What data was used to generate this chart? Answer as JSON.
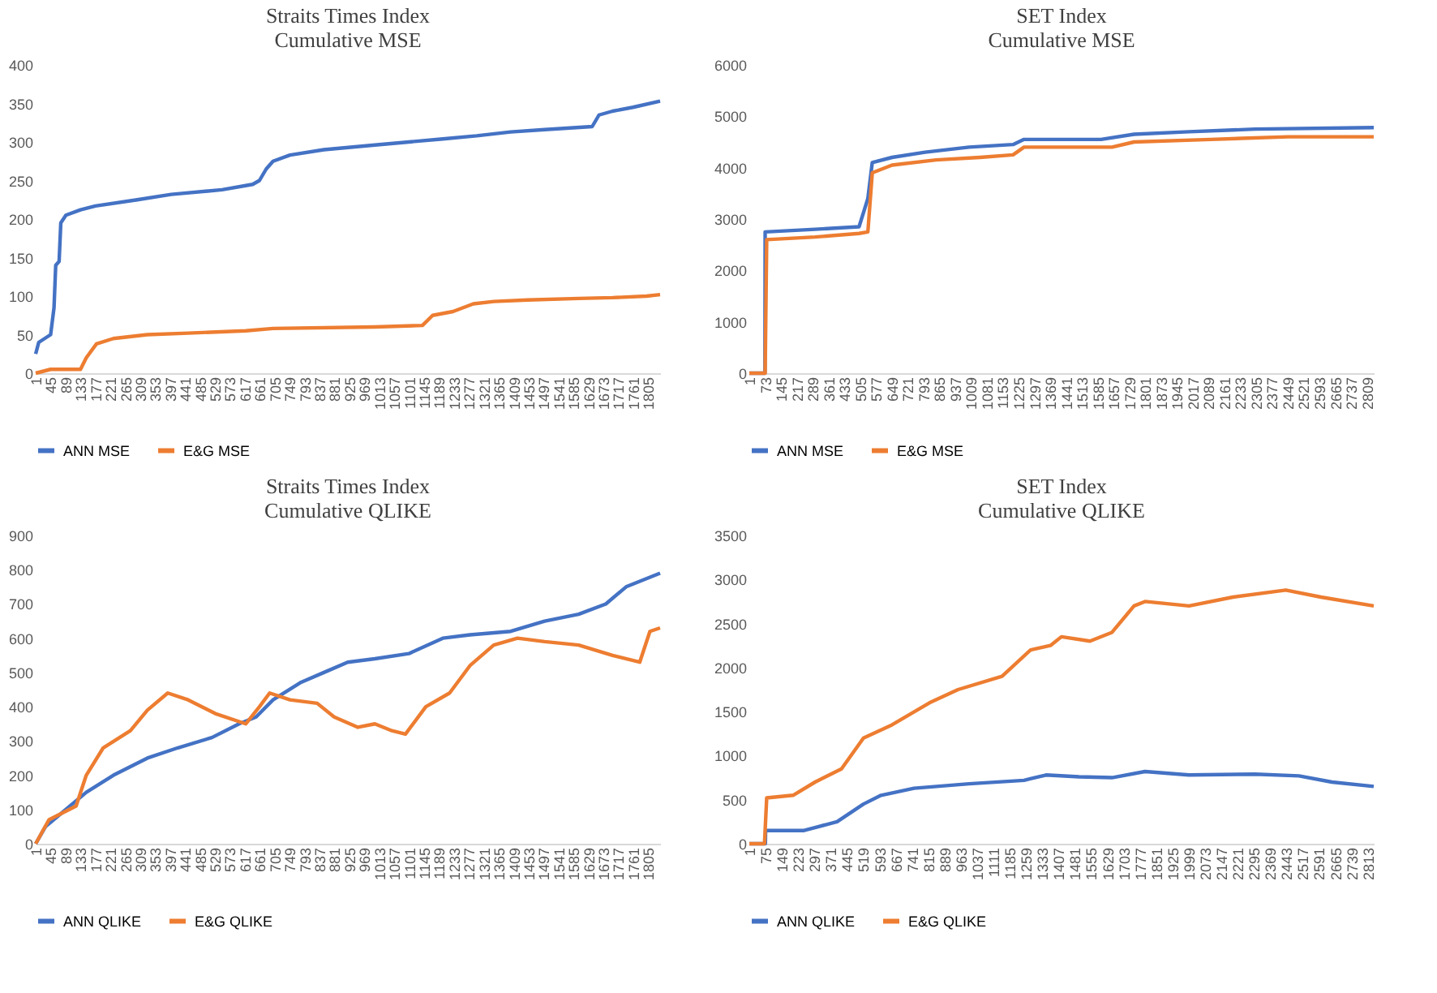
{
  "chart_data": [
    {
      "type": "line",
      "title": "Straits Times Index",
      "subtitle": "Cumulative MSE",
      "xlim": [
        1,
        1840
      ],
      "ylim": [
        0,
        400
      ],
      "yticks": [
        0,
        50,
        100,
        150,
        200,
        250,
        300,
        350,
        400
      ],
      "xticks": [
        1,
        45,
        89,
        133,
        177,
        221,
        265,
        309,
        353,
        397,
        441,
        485,
        529,
        573,
        617,
        661,
        705,
        749,
        793,
        837,
        881,
        925,
        969,
        1013,
        1057,
        1101,
        1145,
        1189,
        1233,
        1277,
        1321,
        1365,
        1409,
        1453,
        1497,
        1541,
        1585,
        1629,
        1673,
        1717,
        1761,
        1805
      ],
      "grid": false,
      "legend": "bottom",
      "series": [
        {
          "name": "ANN MSE",
          "color": "#4472c4",
          "x": [
            1,
            10,
            45,
            55,
            60,
            70,
            75,
            90,
            133,
            177,
            300,
            400,
            550,
            640,
            660,
            680,
            700,
            750,
            850,
            1000,
            1100,
            1200,
            1300,
            1400,
            1500,
            1640,
            1660,
            1700,
            1760,
            1840
          ],
          "values": [
            25,
            40,
            50,
            85,
            140,
            145,
            195,
            205,
            212,
            217,
            225,
            232,
            238,
            245,
            250,
            265,
            275,
            283,
            290,
            296,
            300,
            304,
            308,
            313,
            316,
            320,
            335,
            340,
            345,
            353
          ]
        },
        {
          "name": "E&G MSE",
          "color": "#ed7d31",
          "x": [
            1,
            45,
            133,
            150,
            180,
            230,
            330,
            450,
            620,
            700,
            1000,
            1140,
            1170,
            1230,
            1290,
            1350,
            1450,
            1600,
            1700,
            1800,
            1840
          ],
          "values": [
            0,
            5,
            5,
            20,
            38,
            45,
            50,
            52,
            55,
            58,
            60,
            62,
            75,
            80,
            90,
            93,
            95,
            97,
            98,
            100,
            102
          ]
        }
      ]
    },
    {
      "type": "line",
      "title": "SET Index",
      "subtitle": "Cumulative MSE",
      "xlim": [
        1,
        2840
      ],
      "ylim": [
        0,
        6000
      ],
      "yticks": [
        0,
        1000,
        2000,
        3000,
        4000,
        5000,
        6000
      ],
      "xticks": [
        1,
        73,
        145,
        217,
        289,
        361,
        433,
        505,
        577,
        649,
        721,
        793,
        865,
        937,
        1009,
        1081,
        1153,
        1225,
        1297,
        1369,
        1441,
        1513,
        1585,
        1657,
        1729,
        1801,
        1873,
        1945,
        2017,
        2089,
        2161,
        2233,
        2305,
        2377,
        2449,
        2521,
        2593,
        2665,
        2737,
        2809
      ],
      "grid": false,
      "legend": "bottom",
      "series": [
        {
          "name": "ANN MSE",
          "color": "#4472c4",
          "x": [
            1,
            72,
            73,
            300,
            500,
            540,
            560,
            650,
            800,
            1000,
            1200,
            1250,
            1600,
            1750,
            2000,
            2300,
            2840
          ],
          "values": [
            0,
            0,
            2750,
            2800,
            2850,
            3400,
            4100,
            4200,
            4300,
            4400,
            4450,
            4550,
            4550,
            4650,
            4700,
            4750,
            4780
          ]
        },
        {
          "name": "E&G MSE",
          "color": "#ed7d31",
          "x": [
            1,
            73,
            80,
            300,
            500,
            540,
            560,
            650,
            850,
            1050,
            1200,
            1250,
            1650,
            1750,
            2100,
            2450,
            2840
          ],
          "values": [
            0,
            0,
            2600,
            2650,
            2720,
            2750,
            3900,
            4050,
            4150,
            4200,
            4250,
            4400,
            4400,
            4500,
            4550,
            4600,
            4600
          ]
        }
      ]
    },
    {
      "type": "line",
      "title": "Straits Times Index",
      "subtitle": "Cumulative QLIKE",
      "xlim": [
        1,
        1840
      ],
      "ylim": [
        0,
        900
      ],
      "yticks": [
        0,
        100,
        200,
        300,
        400,
        500,
        600,
        700,
        800,
        900
      ],
      "xticks": [
        1,
        45,
        89,
        133,
        177,
        221,
        265,
        309,
        353,
        397,
        441,
        485,
        529,
        573,
        617,
        661,
        705,
        749,
        793,
        837,
        881,
        925,
        969,
        1013,
        1057,
        1101,
        1145,
        1189,
        1233,
        1277,
        1321,
        1365,
        1409,
        1453,
        1497,
        1541,
        1585,
        1629,
        1673,
        1717,
        1761,
        1805
      ],
      "grid": false,
      "legend": "bottom",
      "series": [
        {
          "name": "ANN QLIKE",
          "color": "#4472c4",
          "x": [
            1,
            30,
            90,
            150,
            230,
            330,
            420,
            520,
            600,
            650,
            700,
            780,
            850,
            920,
            1000,
            1100,
            1200,
            1280,
            1400,
            1500,
            1600,
            1680,
            1740,
            1840
          ],
          "values": [
            0,
            50,
            100,
            150,
            200,
            250,
            280,
            310,
            350,
            370,
            420,
            470,
            500,
            530,
            540,
            555,
            600,
            610,
            620,
            650,
            670,
            700,
            750,
            790
          ]
        },
        {
          "name": "E&G QLIKE",
          "color": "#ed7d31",
          "x": [
            1,
            40,
            120,
            150,
            200,
            280,
            330,
            390,
            450,
            530,
            620,
            660,
            690,
            750,
            830,
            880,
            950,
            1000,
            1050,
            1090,
            1150,
            1220,
            1280,
            1350,
            1420,
            1500,
            1600,
            1700,
            1780,
            1810,
            1840
          ],
          "values": [
            0,
            70,
            110,
            200,
            280,
            330,
            390,
            440,
            420,
            380,
            350,
            400,
            440,
            420,
            410,
            370,
            340,
            350,
            330,
            320,
            400,
            440,
            520,
            580,
            600,
            590,
            580,
            550,
            530,
            620,
            630
          ]
        }
      ]
    },
    {
      "type": "line",
      "title": "SET Index",
      "subtitle": "Cumulative QLIKE",
      "xlim": [
        1,
        2840
      ],
      "ylim": [
        0,
        3500
      ],
      "yticks": [
        0,
        500,
        1000,
        1500,
        2000,
        2500,
        3000,
        3500
      ],
      "xticks": [
        1,
        75,
        149,
        223,
        297,
        371,
        445,
        519,
        593,
        667,
        741,
        815,
        889,
        963,
        1037,
        1111,
        1185,
        1259,
        1333,
        1407,
        1481,
        1555,
        1629,
        1703,
        1777,
        1851,
        1925,
        1999,
        2073,
        2147,
        2221,
        2295,
        2369,
        2443,
        2517,
        2591,
        2665,
        2739,
        2813
      ],
      "grid": false,
      "legend": "bottom",
      "series": [
        {
          "name": "ANN QLIKE",
          "color": "#4472c4",
          "x": [
            1,
            74,
            75,
            250,
            400,
            520,
            600,
            750,
            1000,
            1250,
            1350,
            1500,
            1650,
            1800,
            2000,
            2300,
            2500,
            2650,
            2840
          ],
          "values": [
            0,
            0,
            150,
            150,
            250,
            450,
            550,
            630,
            680,
            720,
            780,
            760,
            750,
            820,
            780,
            790,
            770,
            700,
            650
          ]
        },
        {
          "name": "E&G QLIKE",
          "color": "#ed7d31",
          "x": [
            1,
            70,
            80,
            200,
            300,
            420,
            520,
            650,
            820,
            950,
            1150,
            1280,
            1370,
            1420,
            1550,
            1650,
            1750,
            1800,
            2000,
            2200,
            2440,
            2600,
            2840
          ],
          "values": [
            0,
            0,
            520,
            550,
            700,
            850,
            1200,
            1350,
            1600,
            1750,
            1900,
            2200,
            2250,
            2350,
            2300,
            2400,
            2700,
            2750,
            2700,
            2800,
            2880,
            2800,
            2700
          ]
        }
      ]
    }
  ]
}
